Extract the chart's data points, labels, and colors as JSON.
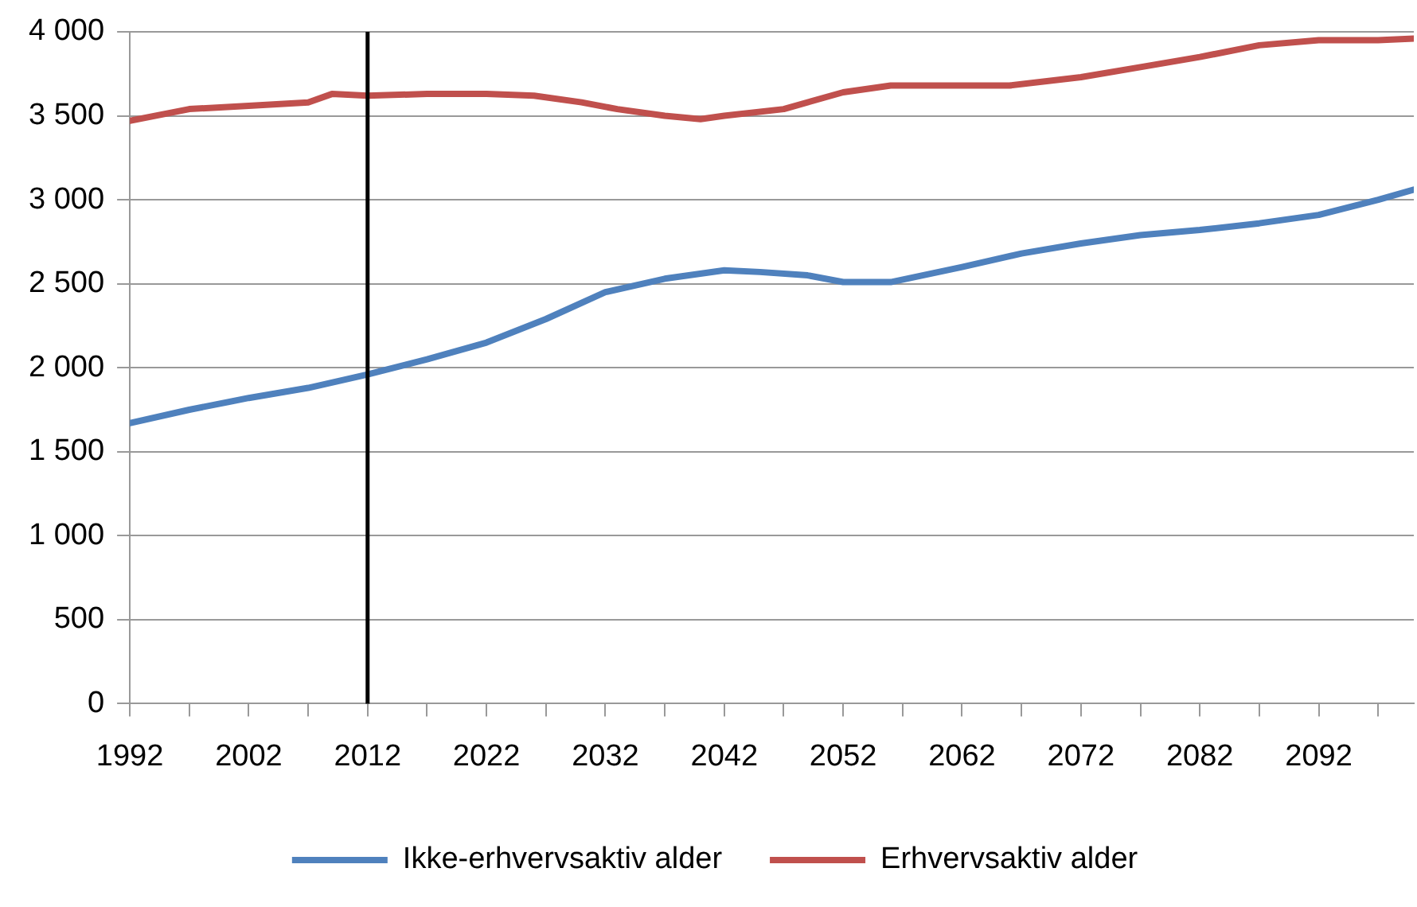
{
  "chart_data": {
    "type": "line",
    "x": [
      1992,
      1997,
      2002,
      2007,
      2012,
      2017,
      2022,
      2027,
      2032,
      2037,
      2042,
      2045,
      2049,
      2052,
      2056,
      2062,
      2067,
      2072,
      2077,
      2082,
      2087,
      2092,
      2097,
      2100
    ],
    "series": [
      {
        "name": "Ikke-erhvervsaktiv alder",
        "color": "#4f81bd",
        "values": [
          1670,
          1750,
          1820,
          1880,
          1960,
          2050,
          2150,
          2290,
          2450,
          2530,
          2580,
          2570,
          2550,
          2510,
          2510,
          2600,
          2680,
          2740,
          2790,
          2820,
          2860,
          2910,
          3000,
          3060
        ]
      },
      {
        "name": "Erhvervsaktiv alder",
        "color": "#c0504d",
        "x": [
          1992,
          1997,
          2002,
          2007,
          2009,
          2012,
          2017,
          2022,
          2026,
          2030,
          2033,
          2037,
          2040,
          2042,
          2047,
          2052,
          2056,
          2062,
          2066,
          2072,
          2077,
          2082,
          2087,
          2092,
          2097,
          2100
        ],
        "values": [
          3470,
          3540,
          3560,
          3580,
          3630,
          3620,
          3630,
          3630,
          3620,
          3580,
          3540,
          3500,
          3480,
          3500,
          3540,
          3640,
          3680,
          3680,
          3680,
          3730,
          3790,
          3850,
          3920,
          3950,
          3950,
          3960
        ]
      }
    ],
    "xlim": [
      1992,
      2100
    ],
    "xticks": [
      1992,
      {
        "value": 1997,
        "label": null
      },
      2002,
      {
        "value": 2007,
        "label": null
      },
      2012,
      {
        "value": 2017,
        "label": null
      },
      2022,
      {
        "value": 2027,
        "label": null
      },
      2032,
      {
        "value": 2037,
        "label": null
      },
      2042,
      {
        "value": 2047,
        "label": null
      },
      2052,
      {
        "value": 2057,
        "label": null
      },
      2062,
      {
        "value": 2067,
        "label": null
      },
      2072,
      {
        "value": 2077,
        "label": null
      },
      2082,
      {
        "value": 2087,
        "label": null
      },
      2092,
      {
        "value": 2097,
        "label": null
      }
    ],
    "ylim": [
      0,
      4000
    ],
    "yticks": [
      {
        "value": 0,
        "label": "0"
      },
      {
        "value": 500,
        "label": "500"
      },
      {
        "value": 1000,
        "label": "1 000"
      },
      {
        "value": 1500,
        "label": "1 500"
      },
      {
        "value": 2000,
        "label": "2 000"
      },
      {
        "value": 2500,
        "label": "2 500"
      },
      {
        "value": 3000,
        "label": "3 000"
      },
      {
        "value": 3500,
        "label": "3 500"
      },
      {
        "value": 4000,
        "label": "4 000"
      }
    ],
    "ref_lines": [
      {
        "axis": "x",
        "value": 2012,
        "color": "#000000"
      }
    ],
    "grid": "y",
    "legend": "bottom",
    "marker": "none",
    "line_style": "solid"
  }
}
